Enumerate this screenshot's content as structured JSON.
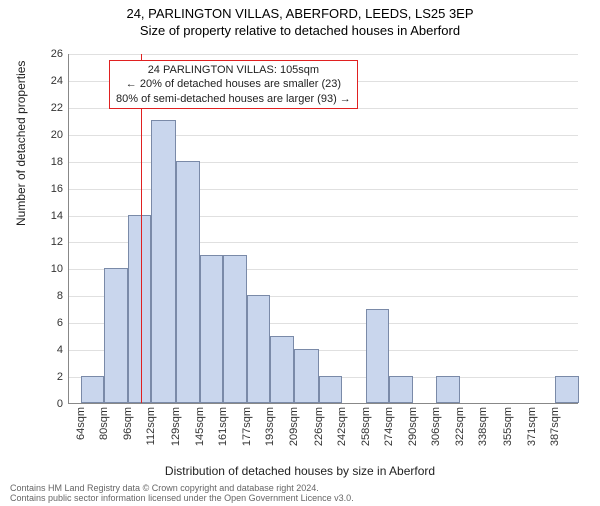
{
  "titles": {
    "line1": "24, PARLINGTON VILLAS, ABERFORD, LEEDS, LS25 3EP",
    "line2": "Size of property relative to detached houses in Aberford"
  },
  "ylabel": "Number of detached properties",
  "xlabel": "Distribution of detached houses by size in Aberford",
  "histogram": {
    "type": "histogram",
    "x_tick_labels": [
      "64sqm",
      "80sqm",
      "96sqm",
      "112sqm",
      "129sqm",
      "145sqm",
      "161sqm",
      "177sqm",
      "193sqm",
      "209sqm",
      "226sqm",
      "242sqm",
      "258sqm",
      "274sqm",
      "290sqm",
      "306sqm",
      "322sqm",
      "338sqm",
      "355sqm",
      "371sqm",
      "387sqm"
    ],
    "bin_edges_sqm": [
      64,
      80,
      96,
      112,
      129,
      145,
      161,
      177,
      193,
      209,
      226,
      242,
      258,
      274,
      290,
      306,
      322,
      338,
      355,
      371,
      387,
      403
    ],
    "counts": [
      2,
      10,
      14,
      21,
      18,
      11,
      11,
      8,
      5,
      4,
      2,
      0,
      7,
      2,
      0,
      2,
      0,
      0,
      0,
      0,
      2
    ],
    "ylim": [
      0,
      26
    ],
    "ytick_step": 2,
    "xlim_sqm": [
      56,
      403
    ],
    "bar_fill": "#c9d6ed",
    "bar_border": "#7a8aa8",
    "grid_color": "#e0e0e0",
    "background": "#ffffff"
  },
  "marker": {
    "value_sqm": 105,
    "color": "#e02020"
  },
  "callout": {
    "line1": "24 PARLINGTON VILLAS: 105sqm",
    "line2": "← 20% of detached houses are smaller (23)",
    "line3": "80% of semi-detached houses are larger (93) →",
    "border_color": "#e02020"
  },
  "attribution": {
    "line1": "Contains HM Land Registry data © Crown copyright and database right 2024.",
    "line2": "Contains public sector information licensed under the Open Government Licence v3.0."
  }
}
